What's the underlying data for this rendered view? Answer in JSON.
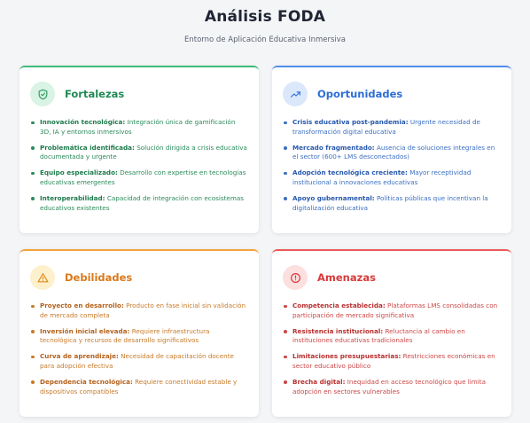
{
  "header": {
    "title": "Análisis FODA",
    "subtitle": "Entorno de Aplicación Educativa Inmersiva"
  },
  "colors": {
    "fortalezas": "#3dbb7a",
    "oportunidades": "#4f8fe8",
    "debilidades": "#f3a23a",
    "amenazas": "#ea5a5a"
  },
  "fortalezas": {
    "title": "Fortalezas",
    "icon": "shield-check-icon",
    "items": [
      {
        "label": "Innovación tecnológica:",
        "text": " Integración única de gamificación 3D, IA y entornos inmersivos"
      },
      {
        "label": "Problemática identificada:",
        "text": " Solución dirigida a crisis educativa documentada y urgente"
      },
      {
        "label": "Equipo especializado:",
        "text": " Desarrollo con expertise en tecnologías educativas emergentes"
      },
      {
        "label": "Interoperabilidad:",
        "text": " Capacidad de integración con ecosistemas educativos existentes"
      }
    ]
  },
  "oportunidades": {
    "title": "Oportunidades",
    "icon": "trending-up-icon",
    "items": [
      {
        "label": "Crisis educativa post-pandemia:",
        "text": " Urgente necesidad de transformación digital educativa"
      },
      {
        "label": "Mercado fragmentado:",
        "text": " Ausencia de soluciones integrales en el sector (600+ LMS desconectados)"
      },
      {
        "label": "Adopción tecnológica creciente:",
        "text": " Mayor receptividad institucional a innovaciones educativas"
      },
      {
        "label": "Apoyo gubernamental:",
        "text": " Políticas públicas que incentivan la digitalización educativa"
      }
    ]
  },
  "debilidades": {
    "title": "Debilidades",
    "icon": "warning-triangle-icon",
    "items": [
      {
        "label": "Proyecto en desarrollo:",
        "text": " Producto en fase inicial sin validación de mercado completa"
      },
      {
        "label": "Inversión inicial elevada:",
        "text": " Requiere infraestructura tecnológica y recursos de desarrollo significativos"
      },
      {
        "label": "Curva de aprendizaje:",
        "text": " Necesidad de capacitación docente para adopción efectiva"
      },
      {
        "label": "Dependencia tecnológica:",
        "text": " Requiere conectividad estable y dispositivos compatibles"
      }
    ]
  },
  "amenazas": {
    "title": "Amenazas",
    "icon": "alert-circle-icon",
    "items": [
      {
        "label": "Competencia establecida:",
        "text": " Plataformas LMS consolidadas con participación de mercado significativa"
      },
      {
        "label": "Resistencia institucional:",
        "text": " Reluctancia al cambio en instituciones educativas tradicionales"
      },
      {
        "label": "Limitaciones presupuestarias:",
        "text": " Restricciones económicas en sector educativo público"
      },
      {
        "label": "Brecha digital:",
        "text": " Inequidad en acceso tecnológico que limita adopción en sectores vulnerables"
      }
    ]
  }
}
